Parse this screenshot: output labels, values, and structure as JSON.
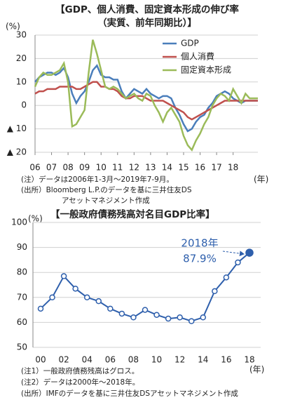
{
  "chart_data": [
    {
      "type": "line",
      "title": [
        "【GDP、個人消費、固定資本形成の伸び率",
        "（実質、前年同期比）】"
      ],
      "y_label": "(%)",
      "x_label": "(年)",
      "x": [
        6,
        6.25,
        6.5,
        6.75,
        7,
        7.25,
        7.5,
        7.75,
        8,
        8.25,
        8.5,
        8.75,
        9,
        9.25,
        9.5,
        9.75,
        10,
        10.25,
        10.5,
        10.75,
        11,
        11.25,
        11.5,
        11.75,
        12,
        12.25,
        12.5,
        12.75,
        13,
        13.25,
        13.5,
        13.75,
        14,
        14.25,
        14.5,
        14.75,
        15,
        15.25,
        15.5,
        15.75,
        16,
        16.25,
        16.5,
        16.75,
        17,
        17.25,
        17.5,
        17.75,
        18,
        18.25,
        18.5,
        18.75,
        19,
        19.25,
        19.5
      ],
      "xlim": [
        6,
        19.5
      ],
      "xticks": [
        {
          "value": 6,
          "label": "06"
        },
        {
          "value": 7,
          "label": "07"
        },
        {
          "value": 8,
          "label": "08"
        },
        {
          "value": 9,
          "label": "09"
        },
        10,
        11,
        12,
        13,
        14,
        15,
        16,
        17,
        18
      ],
      "ylim": [
        -20,
        30
      ],
      "yticks": [
        {
          "value": -20,
          "label": "▲ 20"
        },
        {
          "value": -10,
          "label": "▲ 10"
        },
        0,
        10,
        20,
        30
      ],
      "grid": true,
      "legend": "upper right",
      "series": [
        {
          "name": "GDP",
          "color": "#4a7ebb",
          "values": [
            10,
            12,
            13,
            14,
            14,
            13,
            14,
            16,
            12,
            5,
            1,
            4,
            6,
            10,
            15,
            17,
            13,
            12,
            12,
            11,
            11,
            6,
            3,
            5,
            7,
            6,
            5,
            7,
            5,
            4,
            3,
            4,
            4,
            3,
            -1,
            -4,
            -8,
            -11,
            -10,
            -7,
            -5,
            -4,
            -1,
            1,
            4,
            5,
            6,
            5,
            3,
            2,
            1,
            2,
            2,
            2,
            2
          ]
        },
        {
          "name": "個人消費",
          "color": "#c0504d",
          "values": [
            5,
            6,
            6,
            7,
            7,
            7,
            8,
            8,
            8,
            8,
            7,
            7,
            8,
            9,
            10,
            10,
            8,
            8,
            7,
            7,
            6,
            4,
            3,
            3,
            4,
            4,
            4,
            3,
            2,
            2,
            2,
            2,
            1,
            0,
            -1,
            -2,
            -3,
            -5,
            -6,
            -5,
            -4,
            -3,
            -2,
            -1,
            0,
            1,
            2,
            2,
            2,
            2,
            2,
            2,
            2,
            2,
            2
          ]
        },
        {
          "name": "固定資本形成",
          "color": "#9bbb59",
          "values": [
            8,
            12,
            14,
            13,
            13,
            14,
            15,
            18,
            10,
            -9,
            -8,
            -5,
            -2,
            14,
            28,
            22,
            15,
            8,
            7,
            8,
            7,
            5,
            3,
            4,
            5,
            3,
            2,
            5,
            4,
            0,
            -3,
            -7,
            -3,
            -1,
            -4,
            -7,
            -13,
            -17,
            -19,
            -15,
            -12,
            -8,
            -5,
            0,
            3,
            5,
            4,
            2,
            7,
            4,
            1,
            5,
            3,
            3,
            3
          ]
        }
      ],
      "notes": [
        "(注）データは2006年1-3月～2019年7-9月。",
        "(出所）Bloomberg L.P.のデータを基に三井住友DS",
        "アセットマネジメント作成"
      ]
    },
    {
      "type": "line",
      "title": "【一般政府債務残高対名目GDP比率】",
      "y_label": "(%)",
      "x_label": "(年)",
      "categories": [
        "00",
        null,
        "02",
        null,
        "04",
        null,
        "06",
        null,
        "08",
        null,
        "10",
        null,
        "12",
        null,
        "14",
        null,
        "16",
        null,
        "18"
      ],
      "values": [
        65.5,
        70,
        78.5,
        73.5,
        70,
        68.5,
        65.5,
        63.5,
        62,
        65,
        63,
        61.5,
        62,
        60.5,
        62,
        72.5,
        78,
        84,
        87.9
      ],
      "color": "#2e5fac",
      "ylim": [
        50,
        100
      ],
      "yticks": [
        50,
        60,
        70,
        80,
        90,
        100
      ],
      "grid": true,
      "annotation": [
        "2018年",
        "87.9%"
      ],
      "notes": [
        "(注1）一般政府債務残高はグロス。",
        "(注2）データは2000年～2018年。",
        "(出所）IMFのデータを基に三井住友DSアセットマネジメント作成"
      ]
    }
  ]
}
